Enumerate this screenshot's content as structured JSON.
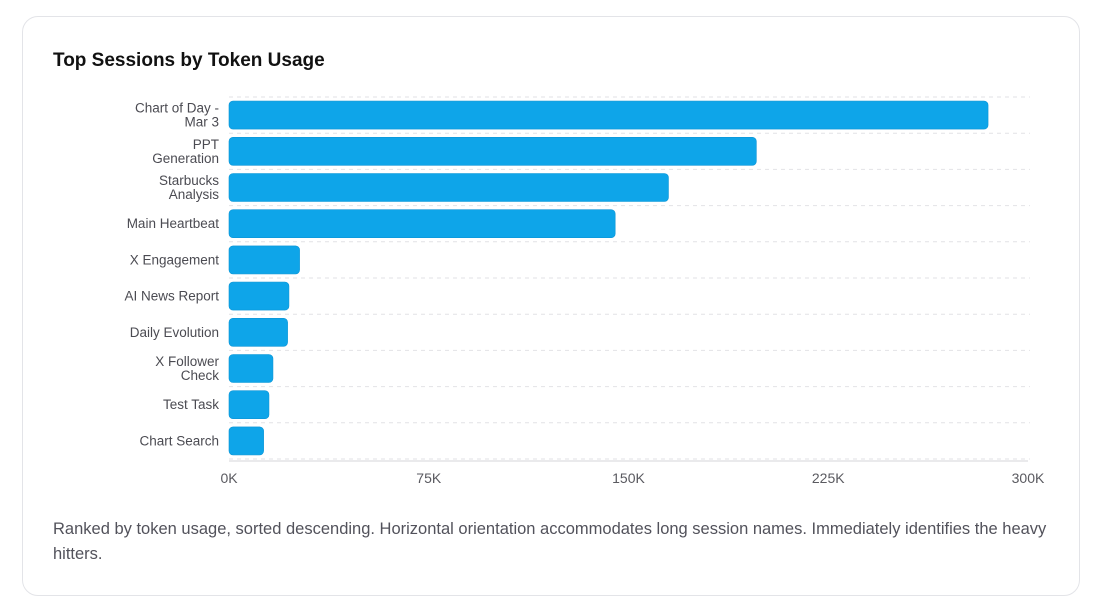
{
  "card": {
    "title": "Top Sessions by Token Usage",
    "caption": "Ranked by token usage, sorted descending. Horizontal orientation accommodates long session names. Immediately identifies the heavy hitters."
  },
  "chart_data": {
    "type": "bar",
    "orientation": "horizontal",
    "title": "Top Sessions by Token Usage",
    "xlabel": "",
    "ylabel": "",
    "categories": [
      [
        "Chart of Day -",
        "Mar 3"
      ],
      [
        "PPT",
        "Generation"
      ],
      [
        "Starbucks",
        "Analysis"
      ],
      [
        "Main Heartbeat"
      ],
      [
        "X Engagement"
      ],
      [
        "AI News Report"
      ],
      [
        "Daily Evolution"
      ],
      [
        "X Follower",
        "Check"
      ],
      [
        "Test Task"
      ],
      [
        "Chart Search"
      ]
    ],
    "values": [
      285000,
      198000,
      165000,
      145000,
      26500,
      22500,
      22000,
      16500,
      15000,
      13000
    ],
    "xlim": [
      0,
      300000
    ],
    "ticks": [
      0,
      75000,
      150000,
      225000,
      300000
    ],
    "tick_labels": [
      "0K",
      "75K",
      "150K",
      "225K",
      "300K"
    ],
    "grid": "horizontal dashed",
    "bar_color": "#0ea5e9"
  }
}
